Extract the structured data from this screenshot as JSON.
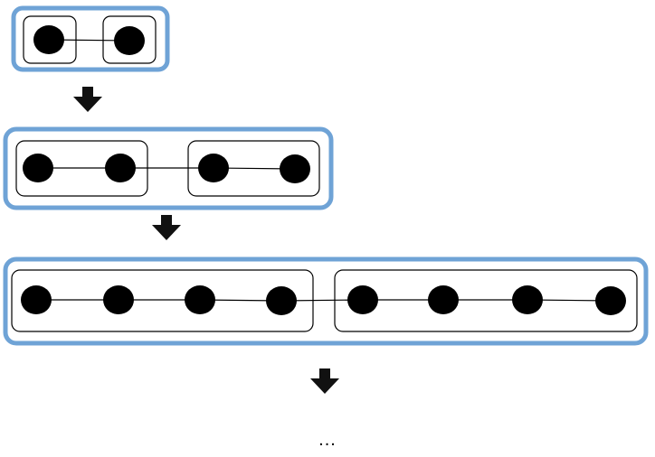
{
  "diagram": {
    "stages": [
      {
        "groups": [
          2
        ]
      },
      {
        "groups": [
          2,
          2
        ]
      },
      {
        "groups": [
          4,
          4
        ]
      }
    ],
    "continuation": "..."
  },
  "colors": {
    "stage_border": "#6fa3d6",
    "group_border": "#000000",
    "node": "#000000",
    "edge": "#000000",
    "arrow": "#000000"
  }
}
